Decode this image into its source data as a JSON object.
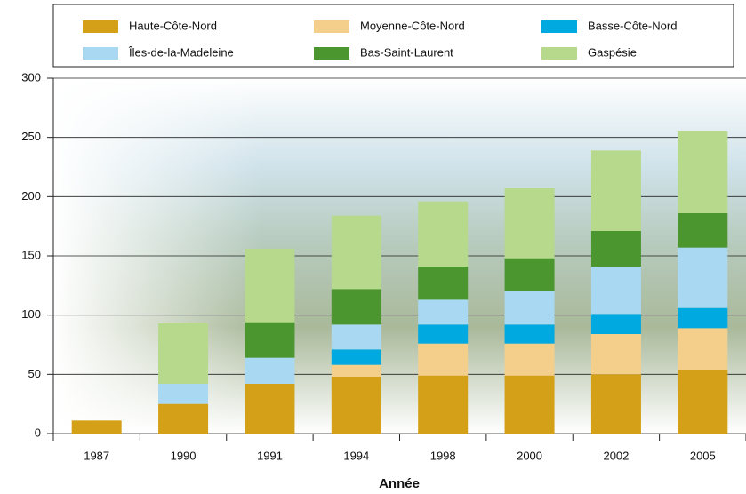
{
  "chart_data": {
    "type": "stacked_bar",
    "xlabel": "Année",
    "categories": [
      "1987",
      "1990",
      "1991",
      "1994",
      "1998",
      "2000",
      "2002",
      "2005"
    ],
    "series": [
      {
        "name": "Haute-Côte-Nord",
        "color": "#d4a017",
        "values": [
          11,
          25,
          42,
          48,
          49,
          49,
          50,
          54
        ]
      },
      {
        "name": "Moyenne-Côte-Nord",
        "color": "#f4cf8c",
        "values": [
          0,
          0,
          0,
          10,
          27,
          27,
          34,
          35
        ]
      },
      {
        "name": "Basse-Côte-Nord",
        "color": "#00a9e0",
        "values": [
          0,
          0,
          0,
          13,
          16,
          16,
          17,
          17
        ]
      },
      {
        "name": "Îles-de-la-Madeleine",
        "color": "#a8d8f2",
        "values": [
          0,
          17,
          22,
          21,
          21,
          28,
          40,
          51
        ]
      },
      {
        "name": "Bas-Saint-Laurent",
        "color": "#4c962f",
        "values": [
          0,
          0,
          30,
          30,
          28,
          28,
          30,
          29
        ]
      },
      {
        "name": "Gaspésie",
        "color": "#b6d98b",
        "values": [
          0,
          51,
          62,
          62,
          55,
          59,
          68,
          69
        ]
      }
    ],
    "ylim": [
      0,
      300
    ],
    "yticks": [
      0,
      50,
      100,
      150,
      200,
      250,
      300
    ],
    "grid": true
  }
}
